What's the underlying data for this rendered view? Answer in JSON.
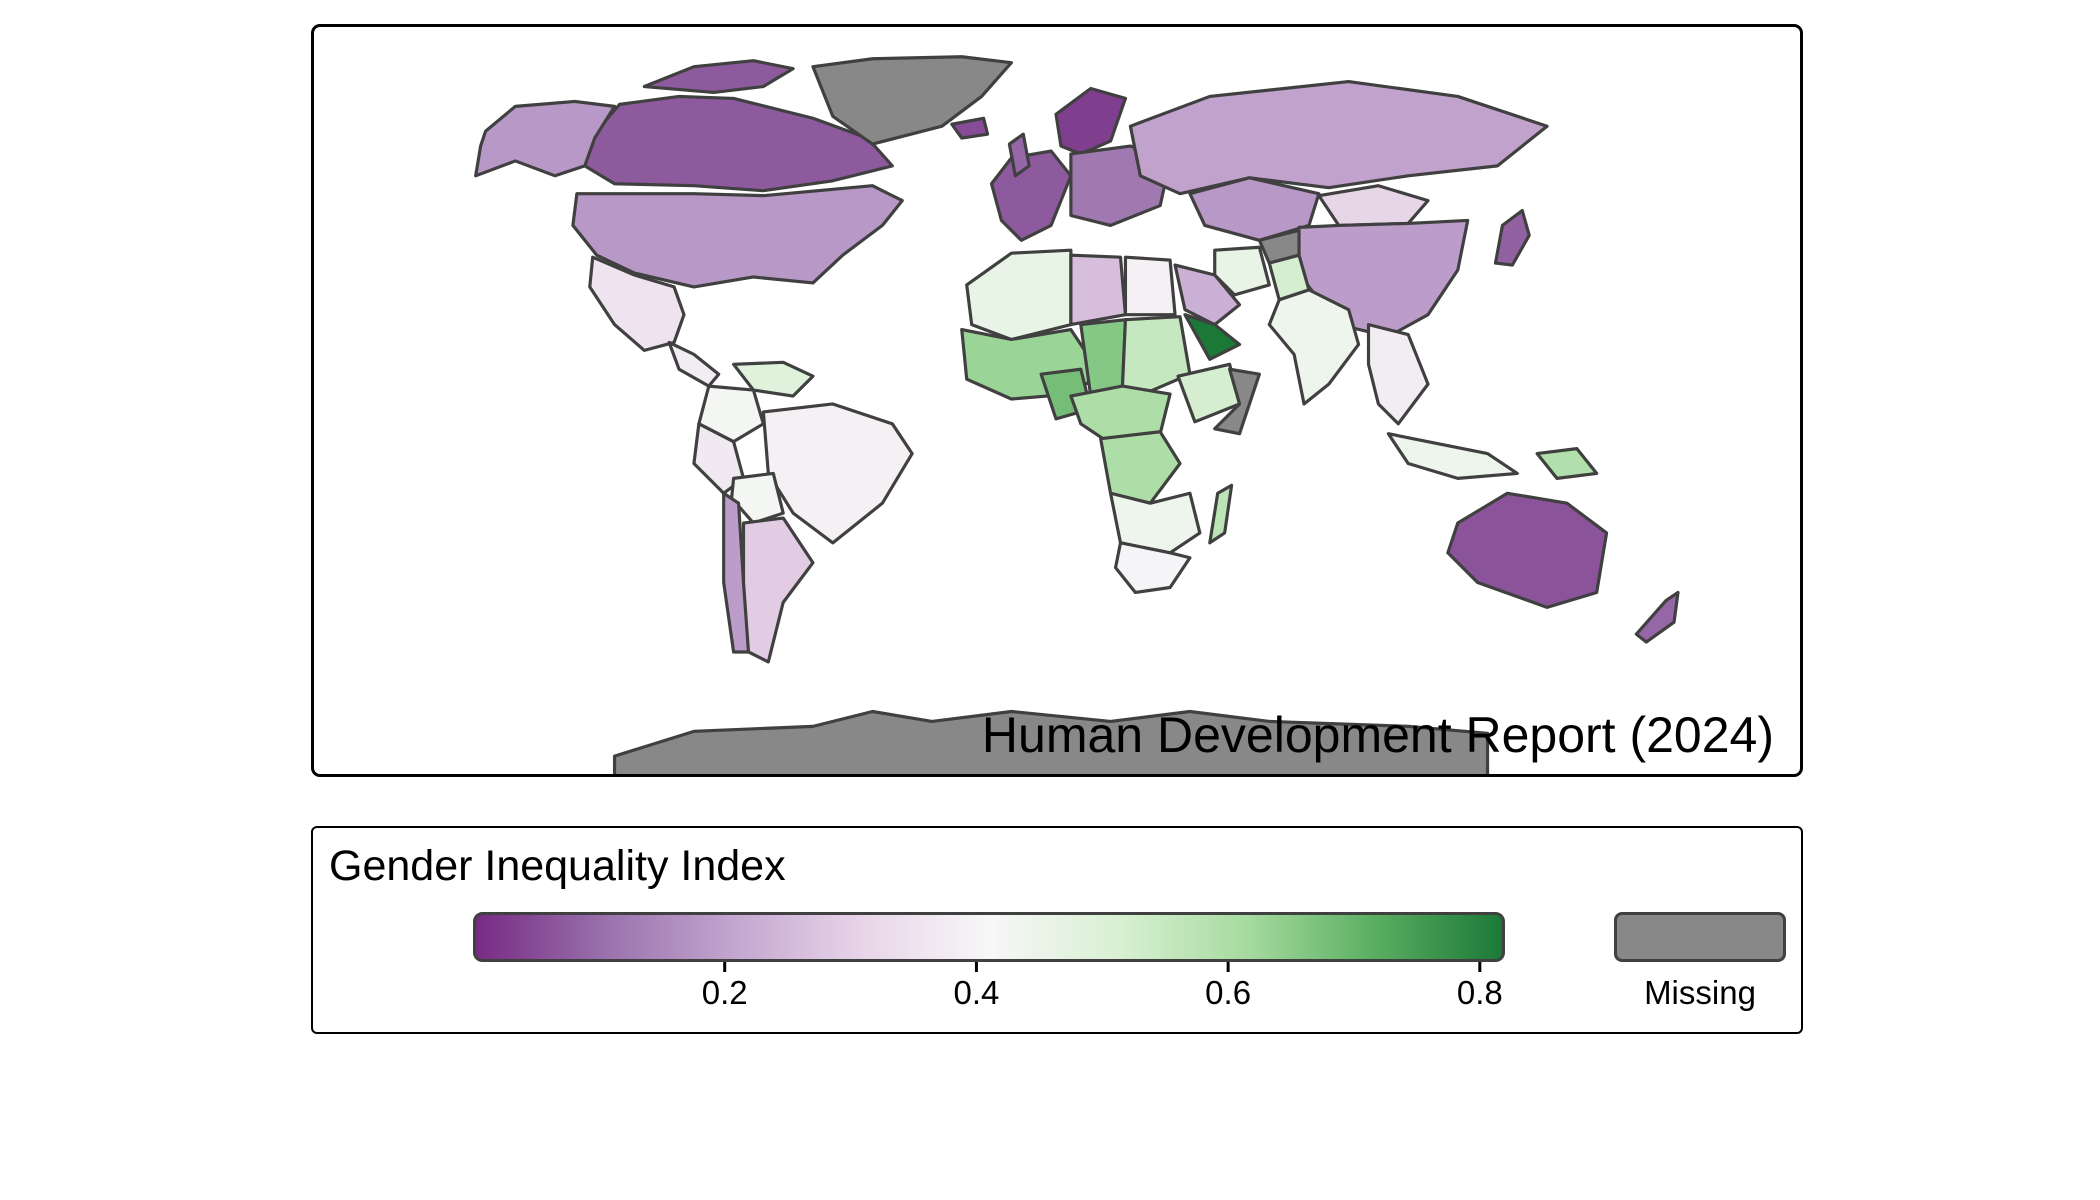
{
  "map": {
    "source_label": "Human Development Report (2024)",
    "missing_color": "#888888",
    "regions": [
      {
        "name": "Canada",
        "value": 0.07
      },
      {
        "name": "Alaska",
        "value": 0.18
      },
      {
        "name": "Canadian Arctic islands",
        "value": 0.07
      },
      {
        "name": "Greenland",
        "value": null
      },
      {
        "name": "United States",
        "value": 0.18
      },
      {
        "name": "Mexico",
        "value": 0.35
      },
      {
        "name": "Central America",
        "value": 0.38
      },
      {
        "name": "Venezuela",
        "value": 0.49
      },
      {
        "name": "Colombia",
        "value": 0.42
      },
      {
        "name": "Brazil",
        "value": 0.39
      },
      {
        "name": "Peru",
        "value": 0.37
      },
      {
        "name": "Bolivia",
        "value": 0.42
      },
      {
        "name": "Chile",
        "value": 0.19
      },
      {
        "name": "Argentina",
        "value": 0.29
      },
      {
        "name": "Western Europe",
        "value": 0.07
      },
      {
        "name": "Scandinavia",
        "value": 0.03
      },
      {
        "name": "Eastern Europe",
        "value": 0.12
      },
      {
        "name": "Iceland",
        "value": 0.05
      },
      {
        "name": "United Kingdom",
        "value": 0.09
      },
      {
        "name": "Russia",
        "value": 0.2
      },
      {
        "name": "Kazakhstan",
        "value": 0.18
      },
      {
        "name": "Mongolia",
        "value": 0.31
      },
      {
        "name": "China",
        "value": 0.19
      },
      {
        "name": "Japan",
        "value": 0.08
      },
      {
        "name": "North Africa",
        "value": 0.46
      },
      {
        "name": "Libya",
        "value": 0.26
      },
      {
        "name": "Egypt",
        "value": 0.39
      },
      {
        "name": "Sahel",
        "value": 0.63
      },
      {
        "name": "Nigeria",
        "value": 0.68
      },
      {
        "name": "Chad",
        "value": 0.66
      },
      {
        "name": "Sudan",
        "value": 0.55
      },
      {
        "name": "Ethiopia",
        "value": 0.52
      },
      {
        "name": "Somalia",
        "value": null
      },
      {
        "name": "Central Africa",
        "value": 0.6
      },
      {
        "name": "DR Congo",
        "value": 0.6
      },
      {
        "name": "Southern Africa",
        "value": 0.44
      },
      {
        "name": "South Africa",
        "value": 0.4
      },
      {
        "name": "Madagascar",
        "value": 0.57
      },
      {
        "name": "Saudi Arabia",
        "value": 0.23
      },
      {
        "name": "Yemen",
        "value": 0.82
      },
      {
        "name": "Iran",
        "value": 0.46
      },
      {
        "name": "Afghanistan",
        "value": null
      },
      {
        "name": "Pakistan",
        "value": 0.52
      },
      {
        "name": "India",
        "value": 0.44
      },
      {
        "name": "Southeast Asia",
        "value": 0.38
      },
      {
        "name": "Indonesia",
        "value": 0.44
      },
      {
        "name": "Papua New Guinea",
        "value": 0.59
      },
      {
        "name": "Australia",
        "value": 0.06
      },
      {
        "name": "New Zealand",
        "value": 0.09
      },
      {
        "name": "Antarctica",
        "value": null
      }
    ]
  },
  "legend": {
    "title": "Gender Inequality Index",
    "ticks": [
      "0.2",
      "0.4",
      "0.6",
      "0.8"
    ],
    "range": [
      0,
      0.82
    ],
    "missing_label": "Missing",
    "colors": [
      "#762a83",
      "#9970ab",
      "#c2a5cf",
      "#e7d4e8",
      "#f7f7f7",
      "#d9f0d3",
      "#a6dba0",
      "#5aae61",
      "#1b7837"
    ]
  }
}
